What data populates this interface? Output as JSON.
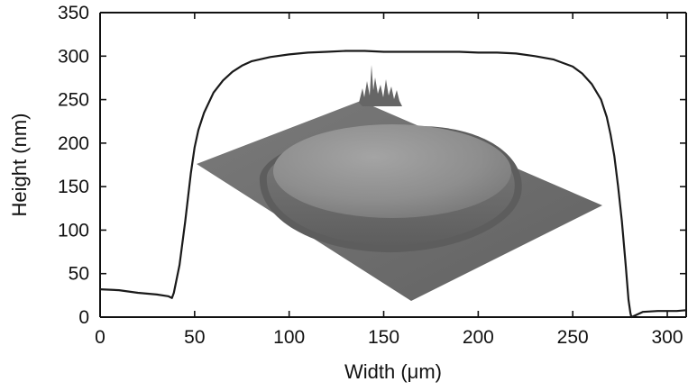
{
  "chart_data": {
    "type": "line",
    "xlabel": "Width (μm)",
    "ylabel": "Height (nm)",
    "xlim": [
      0,
      310
    ],
    "ylim": [
      0,
      350
    ],
    "grid": false,
    "x_ticks": [
      0,
      50,
      100,
      150,
      200,
      250,
      300
    ],
    "y_ticks": [
      0,
      50,
      100,
      150,
      200,
      250,
      300,
      350
    ],
    "x_tick_labels": [
      "0",
      "50",
      "100",
      "150",
      "200",
      "250",
      "300"
    ],
    "y_tick_labels": [
      "0",
      "50",
      "100",
      "150",
      "200",
      "250",
      "300",
      "350"
    ],
    "series": [
      {
        "color": "#1a1a1a",
        "points": [
          [
            0,
            32
          ],
          [
            10,
            31
          ],
          [
            20,
            28
          ],
          [
            30,
            26
          ],
          [
            36,
            24
          ],
          [
            38,
            22
          ],
          [
            39,
            28
          ],
          [
            42,
            60
          ],
          [
            45,
            110
          ],
          [
            48,
            165
          ],
          [
            50,
            195
          ],
          [
            52,
            215
          ],
          [
            55,
            235
          ],
          [
            60,
            258
          ],
          [
            65,
            272
          ],
          [
            70,
            282
          ],
          [
            75,
            289
          ],
          [
            80,
            294
          ],
          [
            90,
            299
          ],
          [
            100,
            302
          ],
          [
            110,
            304
          ],
          [
            120,
            305
          ],
          [
            130,
            306
          ],
          [
            140,
            306
          ],
          [
            150,
            305
          ],
          [
            160,
            305
          ],
          [
            170,
            305
          ],
          [
            180,
            305
          ],
          [
            190,
            305
          ],
          [
            200,
            304
          ],
          [
            210,
            304
          ],
          [
            220,
            303
          ],
          [
            230,
            300
          ],
          [
            240,
            296
          ],
          [
            250,
            288
          ],
          [
            255,
            280
          ],
          [
            260,
            268
          ],
          [
            265,
            250
          ],
          [
            268,
            230
          ],
          [
            270,
            210
          ],
          [
            272,
            185
          ],
          [
            274,
            150
          ],
          [
            276,
            110
          ],
          [
            278,
            60
          ],
          [
            279.5,
            20
          ],
          [
            280.5,
            5
          ],
          [
            281,
            0
          ],
          [
            283,
            2
          ],
          [
            287,
            6
          ],
          [
            295,
            7
          ],
          [
            305,
            7
          ],
          [
            310,
            8
          ]
        ]
      }
    ],
    "inset": {
      "type": "3d-surface-image",
      "colors": {
        "plane": "#6c6c6c",
        "dome_top": "#9a9a9a",
        "dome_side": "#707070"
      }
    }
  }
}
